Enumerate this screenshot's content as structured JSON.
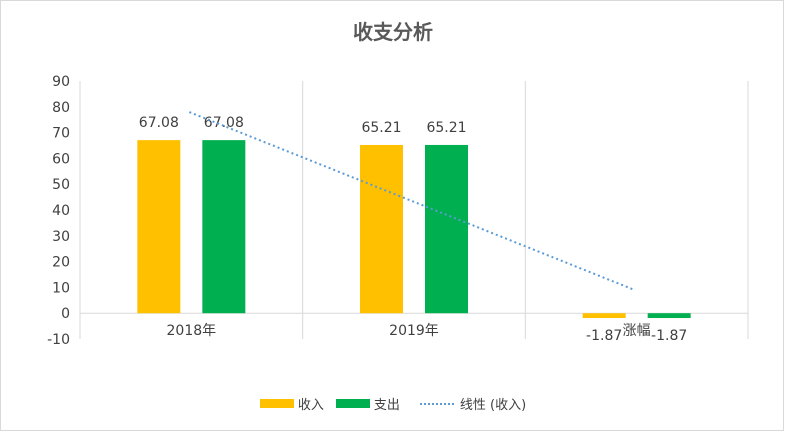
{
  "chart_data": {
    "type": "bar",
    "title": "收支分析",
    "categories": [
      "2018年",
      "2019年",
      "涨幅"
    ],
    "series": [
      {
        "name": "收入",
        "values": [
          67.08,
          65.21,
          -1.87
        ],
        "color": "#ffc000"
      },
      {
        "name": "支出",
        "values": [
          67.08,
          65.21,
          -1.87
        ],
        "color": "#00b050"
      }
    ],
    "trendline": {
      "name": "线性 (收入)",
      "of_series": "收入",
      "type": "linear",
      "color": "#5b9bd5",
      "style": "dotted"
    },
    "data_labels": [
      "67.08",
      "67.08",
      "65.21",
      "65.21",
      "-1.87",
      "-1.87"
    ],
    "ylim": [
      -10,
      90
    ],
    "yticks": [
      "90",
      "80",
      "70",
      "60",
      "50",
      "40",
      "30",
      "20",
      "10",
      "0",
      "-10"
    ],
    "xlabel": "",
    "ylabel": "",
    "grid": "vertical",
    "legend": "bottom"
  }
}
